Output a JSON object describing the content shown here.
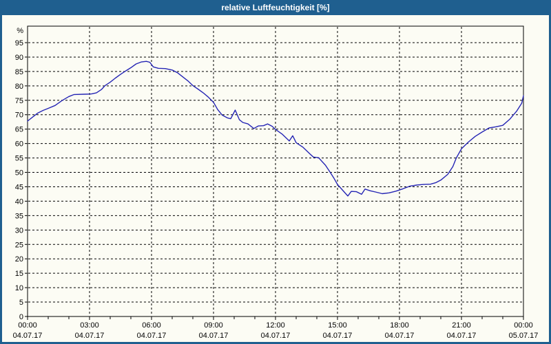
{
  "window": {
    "title": "relative Luftfeuchtigkeit [%]"
  },
  "colors": {
    "titlebar_bg": "#1F5F8F",
    "window_border": "#1F5F8F",
    "plot_bg": "#FCFCF4",
    "grid": "#000000",
    "axis": "#000000",
    "line": "#2424B4",
    "text": "#000000",
    "title_text": "#FFFFFF"
  },
  "chart_data": {
    "type": "line",
    "title": "relative Luftfeuchtigkeit [%]",
    "y_unit": "%",
    "ylabel": "",
    "xlabel": "",
    "ylim": [
      0,
      100.5
    ],
    "x_range_hours": [
      0,
      24
    ],
    "grid": "dashed",
    "legend": "none",
    "y_ticks": [
      0,
      5,
      10,
      15,
      20,
      25,
      30,
      35,
      40,
      45,
      50,
      55,
      60,
      65,
      70,
      75,
      80,
      85,
      90,
      95
    ],
    "x_ticks": [
      {
        "time": "00:00",
        "date": "04.07.17"
      },
      {
        "time": "03:00",
        "date": "04.07.17"
      },
      {
        "time": "06:00",
        "date": "04.07.17"
      },
      {
        "time": "09:00",
        "date": "04.07.17"
      },
      {
        "time": "12:00",
        "date": "04.07.17"
      },
      {
        "time": "15:00",
        "date": "04.07.17"
      },
      {
        "time": "18:00",
        "date": "04.07.17"
      },
      {
        "time": "21:00",
        "date": "04.07.17"
      },
      {
        "time": "00:00",
        "date": "05.07.17"
      }
    ],
    "x_minor_tick_hours": 1,
    "series": [
      {
        "name": "relative Luftfeuchtigkeit",
        "points_format": "[minutes_from_00:00, percent]",
        "points": [
          [
            0,
            67.8
          ],
          [
            15,
            69.2
          ],
          [
            30,
            70.6
          ],
          [
            45,
            71.5
          ],
          [
            60,
            72.2
          ],
          [
            80,
            73.2
          ],
          [
            100,
            74.9
          ],
          [
            120,
            76.3
          ],
          [
            135,
            77.0
          ],
          [
            160,
            77.1
          ],
          [
            185,
            77.2
          ],
          [
            200,
            77.6
          ],
          [
            215,
            78.8
          ],
          [
            225,
            80.1
          ],
          [
            240,
            81.3
          ],
          [
            255,
            82.7
          ],
          [
            270,
            84.0
          ],
          [
            285,
            85.2
          ],
          [
            300,
            86.3
          ],
          [
            315,
            87.6
          ],
          [
            330,
            88.3
          ],
          [
            345,
            88.5
          ],
          [
            355,
            88.2
          ],
          [
            365,
            86.6
          ],
          [
            380,
            86.1
          ],
          [
            400,
            86.0
          ],
          [
            420,
            85.5
          ],
          [
            435,
            84.6
          ],
          [
            450,
            83.2
          ],
          [
            465,
            81.8
          ],
          [
            480,
            80.1
          ],
          [
            495,
            78.9
          ],
          [
            510,
            77.6
          ],
          [
            525,
            76.1
          ],
          [
            540,
            74.3
          ],
          [
            552,
            71.8
          ],
          [
            565,
            69.9
          ],
          [
            580,
            68.9
          ],
          [
            590,
            68.6
          ],
          [
            603,
            71.6
          ],
          [
            615,
            68.3
          ],
          [
            625,
            67.3
          ],
          [
            640,
            66.8
          ],
          [
            657,
            65.2
          ],
          [
            670,
            66.1
          ],
          [
            685,
            66.2
          ],
          [
            697,
            66.8
          ],
          [
            710,
            66.0
          ],
          [
            720,
            64.9
          ],
          [
            740,
            63.2
          ],
          [
            760,
            60.9
          ],
          [
            770,
            62.7
          ],
          [
            780,
            60.3
          ],
          [
            800,
            58.7
          ],
          [
            820,
            56.4
          ],
          [
            830,
            55.3
          ],
          [
            845,
            55.1
          ],
          [
            865,
            52.5
          ],
          [
            880,
            49.8
          ],
          [
            890,
            47.9
          ],
          [
            900,
            45.8
          ],
          [
            915,
            43.8
          ],
          [
            930,
            41.8
          ],
          [
            940,
            43.4
          ],
          [
            955,
            43.3
          ],
          [
            970,
            42.4
          ],
          [
            980,
            44.2
          ],
          [
            995,
            43.6
          ],
          [
            1010,
            43.2
          ],
          [
            1030,
            42.6
          ],
          [
            1050,
            42.9
          ],
          [
            1070,
            43.5
          ],
          [
            1090,
            44.3
          ],
          [
            1110,
            45.2
          ],
          [
            1130,
            45.6
          ],
          [
            1150,
            45.8
          ],
          [
            1170,
            45.9
          ],
          [
            1185,
            46.4
          ],
          [
            1200,
            47.3
          ],
          [
            1220,
            49.3
          ],
          [
            1235,
            52.0
          ],
          [
            1245,
            55.0
          ],
          [
            1260,
            58.2
          ],
          [
            1280,
            60.5
          ],
          [
            1300,
            62.5
          ],
          [
            1320,
            64.0
          ],
          [
            1340,
            65.4
          ],
          [
            1360,
            65.8
          ],
          [
            1380,
            66.3
          ],
          [
            1400,
            68.4
          ],
          [
            1420,
            71.2
          ],
          [
            1435,
            74.0
          ],
          [
            1440,
            76.6
          ]
        ]
      }
    ]
  }
}
